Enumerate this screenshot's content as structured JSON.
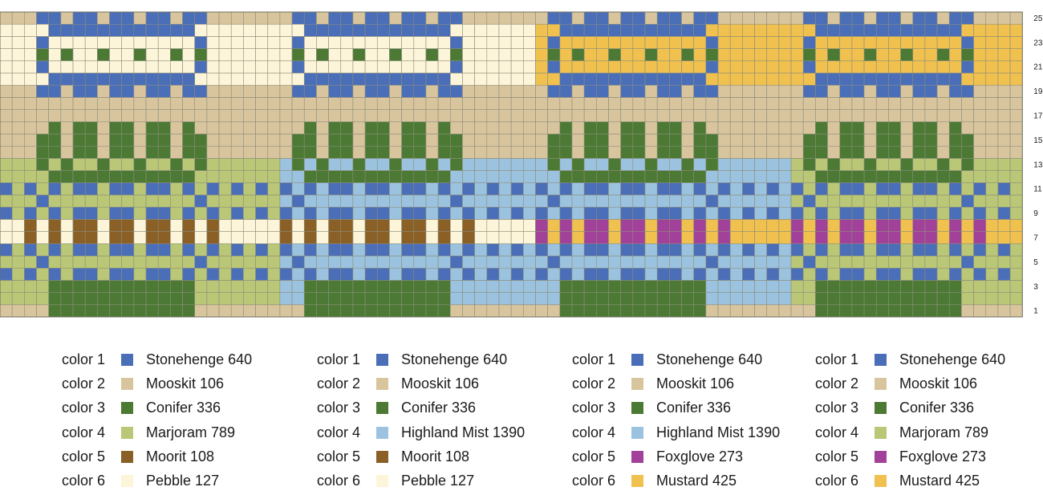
{
  "palettes": {
    "stonehenge": "#4a6eb8",
    "mooskit": "#d8c59d",
    "conifer": "#4c7a35",
    "marjoram": "#b9c776",
    "moorit": "#8a6026",
    "pebble": "#fdf5d9",
    "highland": "#9bc3df",
    "foxglove": "#a2419a",
    "mustard": "#f0c14e",
    "gridline": "#8d8d7a"
  },
  "row_numbers": [
    "25",
    "23",
    "21",
    "19",
    "17",
    "15",
    "13",
    "11",
    "9",
    "7",
    "5",
    "3",
    "1"
  ],
  "legends": [
    {
      "items": [
        {
          "key": "color 1",
          "name": "Stonehenge 640",
          "color": "#4a6eb8"
        },
        {
          "key": "color 2",
          "name": "Mooskit 106",
          "color": "#d8c59d"
        },
        {
          "key": "color 3",
          "name": "Conifer 336",
          "color": "#4c7a35"
        },
        {
          "key": "color 4",
          "name": "Marjoram 789",
          "color": "#b9c776"
        },
        {
          "key": "color 5",
          "name": "Moorit 108",
          "color": "#8a6026"
        },
        {
          "key": "color 6",
          "name": "Pebble 127",
          "color": "#fdf5d9"
        }
      ]
    },
    {
      "items": [
        {
          "key": "color 1",
          "name": "Stonehenge 640",
          "color": "#4a6eb8"
        },
        {
          "key": "color 2",
          "name": "Mooskit 106",
          "color": "#d8c59d"
        },
        {
          "key": "color 3",
          "name": "Conifer 336",
          "color": "#4c7a35"
        },
        {
          "key": "color 4",
          "name": "Highland Mist 1390",
          "color": "#9bc3df"
        },
        {
          "key": "color 5",
          "name": "Moorit 108",
          "color": "#8a6026"
        },
        {
          "key": "color 6",
          "name": "Pebble 127",
          "color": "#fdf5d9"
        }
      ]
    },
    {
      "items": [
        {
          "key": "color 1",
          "name": "Stonehenge 640",
          "color": "#4a6eb8"
        },
        {
          "key": "color 2",
          "name": "Mooskit 106",
          "color": "#d8c59d"
        },
        {
          "key": "color 3",
          "name": "Conifer 336",
          "color": "#4c7a35"
        },
        {
          "key": "color 4",
          "name": "Highland Mist 1390",
          "color": "#9bc3df"
        },
        {
          "key": "color 5",
          "name": "Foxglove 273",
          "color": "#a2419a"
        },
        {
          "key": "color 6",
          "name": "Mustard 425",
          "color": "#f0c14e"
        }
      ]
    },
    {
      "items": [
        {
          "key": "color 1",
          "name": "Stonehenge 640",
          "color": "#4a6eb8"
        },
        {
          "key": "color 2",
          "name": "Mooskit 106",
          "color": "#d8c59d"
        },
        {
          "key": "color 3",
          "name": "Conifer 336",
          "color": "#4c7a35"
        },
        {
          "key": "color 4",
          "name": "Marjoram 789",
          "color": "#b9c776"
        },
        {
          "key": "color 5",
          "name": "Foxglove 273",
          "color": "#a2419a"
        },
        {
          "key": "color 6",
          "name": "Mustard 425",
          "color": "#f0c14e"
        }
      ]
    }
  ]
}
